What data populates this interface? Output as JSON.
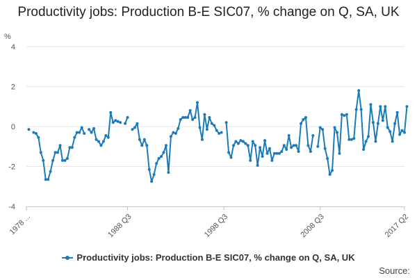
{
  "chart_data": {
    "type": "line",
    "title": "Productivity jobs: Production B-E SIC07, % change on Q, SA, UK",
    "ylabel": "%",
    "xlabel": "",
    "ylim": [
      -4,
      4
    ],
    "yticks": [
      -4,
      -2,
      0,
      2,
      4
    ],
    "xlim": [
      1978.0,
      2017.25
    ],
    "xtick_positions": [
      1978.0,
      1988.5,
      1998.5,
      2008.5,
      2017.25
    ],
    "xtick_labels": [
      "1978 ...",
      "1988 Q3",
      "1998 Q3",
      "2008 Q3",
      "2017 Q2"
    ],
    "grid": true,
    "legend_position": "bottom",
    "source_label": "Source:",
    "series": [
      {
        "name": "Productivity jobs: Production B-E SIC07, % change on Q, SA, UK",
        "color": "#1b7ab8",
        "points": [
          [
            1978.25,
            -0.15
          ],
          [
            1978.75,
            -0.3
          ],
          [
            1979.0,
            -0.35
          ],
          [
            1979.25,
            -0.55
          ],
          [
            1979.5,
            -1.3
          ],
          [
            1979.75,
            -1.7
          ],
          [
            1980.0,
            -2.65
          ],
          [
            1980.25,
            -2.65
          ],
          [
            1980.5,
            -2.25
          ],
          [
            1980.75,
            -1.7
          ],
          [
            1981.0,
            -1.3
          ],
          [
            1981.25,
            -1.3
          ],
          [
            1981.5,
            -0.95
          ],
          [
            1981.75,
            -1.7
          ],
          [
            1982.0,
            -1.7
          ],
          [
            1982.25,
            -1.6
          ],
          [
            1982.5,
            -1.05
          ],
          [
            1982.75,
            -1.05
          ],
          [
            1983.0,
            -0.55
          ],
          [
            1983.25,
            -0.3
          ],
          [
            1983.5,
            -0.3
          ],
          [
            1983.75,
            -0.05
          ],
          [
            1984.0,
            -0.35
          ],
          [
            1984.5,
            -0.15
          ],
          [
            1984.75,
            -0.3
          ],
          [
            1985.0,
            -0.1
          ],
          [
            1985.25,
            -0.65
          ],
          [
            1985.5,
            -0.75
          ],
          [
            1985.75,
            -0.95
          ],
          [
            1986.0,
            -0.75
          ],
          [
            1986.25,
            -0.45
          ],
          [
            1986.5,
            -0.55
          ],
          [
            1986.75,
            0.7
          ],
          [
            1987.0,
            0.2
          ],
          [
            1987.25,
            0.3
          ],
          [
            1987.5,
            0.25
          ],
          [
            1987.75,
            0.2
          ],
          [
            1988.25,
            0.15
          ],
          [
            1988.5,
            0.45
          ],
          [
            1989.0,
            -0.15
          ],
          [
            1989.25,
            -0.05
          ],
          [
            1989.5,
            0.15
          ],
          [
            1989.75,
            -0.65
          ],
          [
            1990.0,
            -0.95
          ],
          [
            1990.25,
            -0.65
          ],
          [
            1990.5,
            -0.95
          ],
          [
            1990.75,
            -2.15
          ],
          [
            1991.0,
            -2.75
          ],
          [
            1991.25,
            -2.4
          ],
          [
            1991.5,
            -1.85
          ],
          [
            1991.75,
            -1.6
          ],
          [
            1992.0,
            -1.5
          ],
          [
            1992.25,
            -1.3
          ],
          [
            1992.5,
            -0.95
          ],
          [
            1992.75,
            -2.3
          ],
          [
            1993.0,
            -0.5
          ],
          [
            1993.25,
            -0.3
          ],
          [
            1993.5,
            -0.35
          ],
          [
            1993.75,
            -0.1
          ],
          [
            1994.0,
            0.35
          ],
          [
            1994.25,
            0.45
          ],
          [
            1994.5,
            0.45
          ],
          [
            1994.75,
            0.45
          ],
          [
            1995.0,
            0.8
          ],
          [
            1995.25,
            0.35
          ],
          [
            1995.5,
            0.45
          ],
          [
            1995.75,
            1.2
          ],
          [
            1996.0,
            -0.05
          ],
          [
            1996.25,
            -0.65
          ],
          [
            1996.5,
            0.6
          ],
          [
            1996.75,
            -0.15
          ],
          [
            1997.0,
            0.45
          ],
          [
            1997.25,
            0.15
          ],
          [
            1997.5,
            0.05
          ],
          [
            1997.75,
            -0.2
          ],
          [
            1998.0,
            -0.35
          ],
          [
            1998.25,
            -0.3
          ],
          [
            1998.75,
            0.2
          ],
          [
            1999.0,
            -1.3
          ],
          [
            1999.25,
            -1.55
          ],
          [
            1999.5,
            -0.95
          ],
          [
            1999.75,
            -0.75
          ],
          [
            2000.0,
            -0.85
          ],
          [
            2000.25,
            -0.7
          ],
          [
            2000.5,
            -0.75
          ],
          [
            2000.75,
            -0.85
          ],
          [
            2001.0,
            -0.95
          ],
          [
            2001.25,
            -1.7
          ],
          [
            2001.5,
            -0.75
          ],
          [
            2001.75,
            -0.95
          ],
          [
            2002.0,
            -1.95
          ],
          [
            2002.25,
            -1.05
          ],
          [
            2002.5,
            -1.5
          ],
          [
            2002.75,
            -0.7
          ],
          [
            2003.0,
            -1.35
          ],
          [
            2003.25,
            -1.1
          ],
          [
            2003.5,
            -1.7
          ],
          [
            2003.75,
            -1.35
          ],
          [
            2004.0,
            -1.35
          ],
          [
            2004.25,
            -1.35
          ],
          [
            2004.5,
            -1.25
          ],
          [
            2004.75,
            -0.95
          ],
          [
            2005.0,
            -1.15
          ],
          [
            2005.25,
            -0.45
          ],
          [
            2005.5,
            -1.05
          ],
          [
            2005.75,
            -0.95
          ],
          [
            2006.0,
            -0.95
          ],
          [
            2006.25,
            -1.25
          ],
          [
            2006.5,
            0.15
          ],
          [
            2006.75,
            0.35
          ],
          [
            2007.0,
            0.45
          ],
          [
            2007.25,
            -0.95
          ],
          [
            2007.5,
            -1.25
          ],
          [
            2007.75,
            -0.45
          ],
          [
            2008.25,
            -1.0
          ],
          [
            2008.5,
            -0.05
          ],
          [
            2008.75,
            -0.15
          ],
          [
            2009.0,
            -1.1
          ],
          [
            2009.25,
            -1.6
          ],
          [
            2009.5,
            -2.4
          ],
          [
            2009.75,
            -2.2
          ],
          [
            2010.0,
            -0.05
          ],
          [
            2010.25,
            -0.3
          ],
          [
            2010.5,
            -1.35
          ],
          [
            2010.75,
            0.6
          ],
          [
            2011.0,
            0.55
          ],
          [
            2011.25,
            0.6
          ],
          [
            2011.5,
            -0.65
          ],
          [
            2011.75,
            -0.65
          ],
          [
            2012.0,
            -0.6
          ],
          [
            2012.25,
            0.85
          ],
          [
            2012.5,
            1.8
          ],
          [
            2012.75,
            0.85
          ],
          [
            2013.0,
            -1.15
          ],
          [
            2013.25,
            -0.75
          ],
          [
            2013.5,
            -0.5
          ],
          [
            2013.75,
            1.1
          ],
          [
            2014.0,
            0.2
          ],
          [
            2014.25,
            -0.75
          ],
          [
            2014.5,
            0.15
          ],
          [
            2014.75,
            1.0
          ],
          [
            2015.0,
            0.3
          ],
          [
            2015.25,
            1.0
          ],
          [
            2015.5,
            -0.05
          ],
          [
            2015.75,
            -0.25
          ],
          [
            2016.0,
            -0.75
          ],
          [
            2016.25,
            0.15
          ],
          [
            2016.5,
            0.7
          ],
          [
            2016.75,
            -0.4
          ],
          [
            2017.0,
            -0.2
          ],
          [
            2017.25,
            -0.3
          ],
          [
            2017.5,
            1.0
          ]
        ]
      }
    ]
  }
}
